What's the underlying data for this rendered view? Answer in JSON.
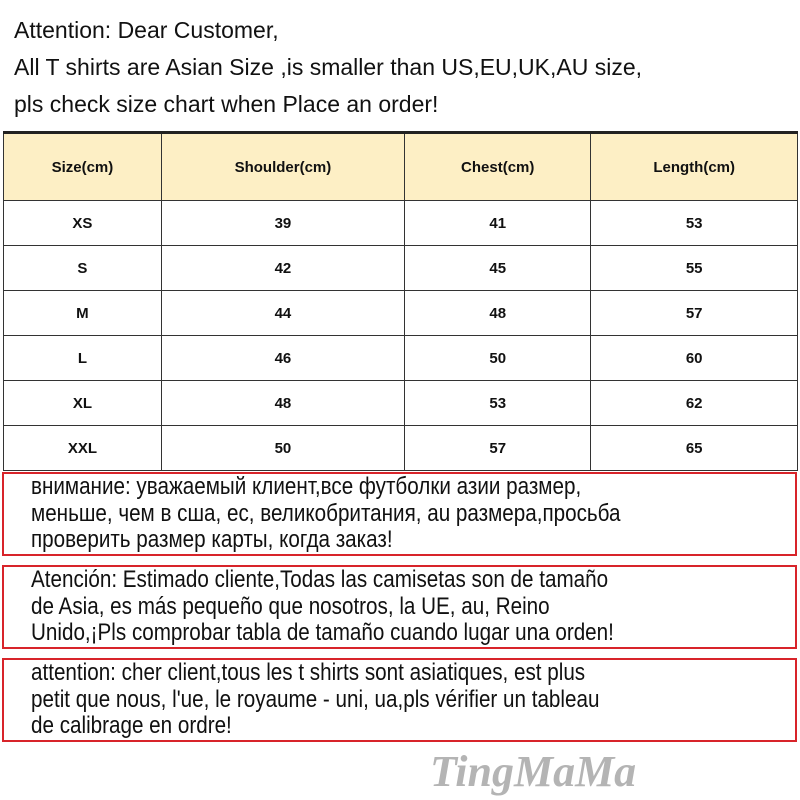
{
  "intro": [
    "Attention: Dear Customer,",
    "All T shirts are  Asian Size ,is smaller than US,EU,UK,AU size,",
    "pls check size chart when Place an order!"
  ],
  "table": {
    "headers": [
      "Size(cm)",
      "Shoulder(cm)",
      "Chest(cm)",
      "Length(cm)"
    ],
    "rows": [
      [
        "XS",
        "39",
        "41",
        "53"
      ],
      [
        "S",
        "42",
        "45",
        "55"
      ],
      [
        "M",
        "44",
        "48",
        "57"
      ],
      [
        "L",
        "46",
        "50",
        "60"
      ],
      [
        "XL",
        "48",
        "53",
        "62"
      ],
      [
        "XXL",
        "50",
        "57",
        "65"
      ]
    ]
  },
  "notices": [
    [
      "внимание: уважаемый клиент,все футболки азии размер,",
      "меньше, чем в сша, ес, великобритания, au размера,просьба",
      "проверить размер карты, когда заказ!"
    ],
    [
      "Atención: Estimado cliente,Todas las camisetas son de tamaño",
      "de Asia, es más pequeño que nosotros, la UE, au, Reino",
      "Unido,¡Pls comprobar tabla de tamaño cuando lugar una orden!"
    ],
    [
      "attention: cher client,tous les t shirts sont asiatiques, est plus",
      "petit que nous, l'ue, le royaume - uni, ua,pls vérifier un tableau",
      "de calibrage en ordre!"
    ]
  ],
  "watermark": "TingMaMa",
  "colors": {
    "header_bg": "#fdefc5",
    "notice_border": "#d8242a"
  }
}
